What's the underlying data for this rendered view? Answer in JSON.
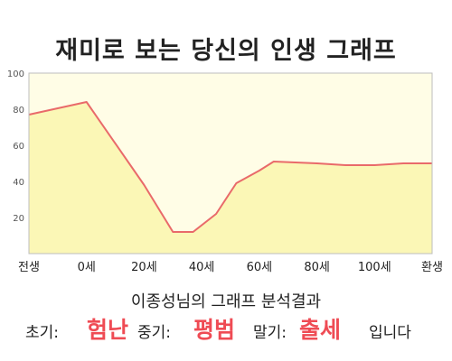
{
  "title": "재미로 보는 당신의 인생 그래프",
  "subtitle": "이종성님의 그래프 분석결과",
  "result": {
    "early_label": "초기:",
    "early_value": "험난",
    "mid_label": "중기:",
    "mid_value": "평범",
    "late_label": "말기:",
    "late_value": "출세",
    "ending": "입니다"
  },
  "colors": {
    "line": "#e96a6a",
    "fill": "#fbf7b6",
    "highlight": "#ef4b54",
    "plot_bg": "#fffde6"
  },
  "chart_data": {
    "type": "area",
    "title": "재미로 보는 당신의 인생 그래프",
    "xlabel": "",
    "ylabel": "",
    "x_ticks": [
      "전생",
      "0세",
      "20세",
      "40세",
      "60세",
      "80세",
      "100세",
      "환생"
    ],
    "x_tick_values": [
      -20,
      0,
      20,
      40,
      60,
      80,
      100,
      120
    ],
    "xlim": [
      -20,
      120
    ],
    "ylim": [
      0,
      100
    ],
    "y_ticks": [
      20,
      40,
      60,
      80,
      100
    ],
    "grid": false,
    "series": [
      {
        "x": [
          -20,
          0,
          20,
          30,
          37,
          45,
          52,
          60,
          65,
          80,
          90,
          100,
          110,
          120
        ],
        "y": [
          77,
          84,
          38,
          12,
          12,
          22,
          39,
          46,
          51,
          50,
          49,
          49,
          50,
          50
        ]
      }
    ]
  }
}
